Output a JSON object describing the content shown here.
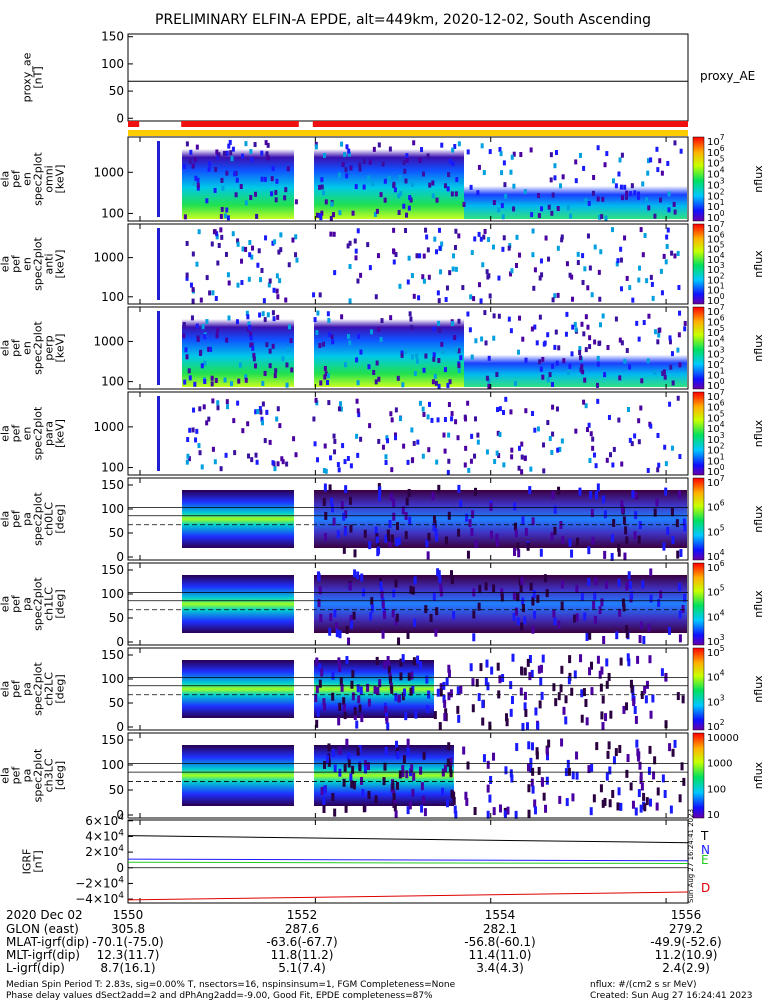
{
  "title": "PRELIMINARY ELFIN-A EPDE, alt=449km, 2020-12-02, South Ascending",
  "colors": {
    "trace_T": "#000000",
    "trace_N": "#1a1aff",
    "trace_E": "#22cc22",
    "trace_D": "#dd0000",
    "bar_red": "#ee1111",
    "bar_orange": "#ffcc00"
  },
  "chart_data": {
    "type": "heatmap",
    "time_ticks": [
      "1550",
      "1552",
      "1554",
      "1556"
    ],
    "xlim": [
      "15:49.7",
      "15:56.0"
    ],
    "proxy_ae": {
      "ylabel": [
        "proxy_ae",
        "[nT]"
      ],
      "yticks": [
        "150",
        "100",
        "50",
        "0"
      ],
      "ylim": [
        -5,
        155
      ],
      "legend": "proxy_AE",
      "value": 68
    },
    "status_bars": [
      {
        "color": "red",
        "segments": [
          [
            0.0,
            0.02
          ],
          [
            0.095,
            0.305
          ],
          [
            0.33,
            1.0
          ]
        ]
      },
      {
        "color": "orange",
        "segments": [
          [
            0.0,
            1.0
          ]
        ]
      }
    ],
    "energy_panels": [
      {
        "ylabel": [
          "ela",
          "pef",
          "en",
          "spec2plot",
          "omni",
          "[keV]"
        ],
        "yticks": [
          "1000",
          "100"
        ],
        "cbar_ticks": [
          "10^7",
          "10^6",
          "10^5",
          "10^4",
          "10^3",
          "10^2",
          "10^1",
          "10^0"
        ],
        "cbar_label": "nflux"
      },
      {
        "ylabel": [
          "ela",
          "pef",
          "en",
          "spec2plot",
          "anti",
          "[keV]"
        ],
        "yticks": [
          "1000",
          "100"
        ],
        "cbar_ticks": [
          "10^7",
          "10^6",
          "10^5",
          "10^4",
          "10^3",
          "10^2",
          "10^1",
          "10^0"
        ],
        "cbar_label": "nflux"
      },
      {
        "ylabel": [
          "ela",
          "pef",
          "en",
          "spec2plot",
          "perp",
          "[keV]"
        ],
        "yticks": [
          "1000",
          "100"
        ],
        "cbar_ticks": [
          "10^7",
          "10^6",
          "10^5",
          "10^4",
          "10^3",
          "10^2",
          "10^1",
          "10^0"
        ],
        "cbar_label": "nflux"
      },
      {
        "ylabel": [
          "ela",
          "pef",
          "en",
          "spec2plot",
          "para",
          "[keV]"
        ],
        "yticks": [
          "1000",
          "100"
        ],
        "cbar_ticks": [
          "10^7",
          "10^6",
          "10^5",
          "10^4",
          "10^3",
          "10^2",
          "10^1",
          "10^0"
        ],
        "cbar_label": "nflux"
      }
    ],
    "pitch_panels": [
      {
        "ylabel": [
          "ela",
          "pef",
          "pa",
          "spec2plot",
          "ch0LC",
          "[deg]"
        ],
        "yticks": [
          "150",
          "100",
          "50",
          "0"
        ],
        "cbar_ticks": [
          "10^7",
          "10^6",
          "10^5",
          "10^4"
        ],
        "cbar_label": "nflux"
      },
      {
        "ylabel": [
          "ela",
          "pef",
          "pa",
          "spec2plot",
          "ch1LC",
          "[deg]"
        ],
        "yticks": [
          "150",
          "100",
          "50",
          "0"
        ],
        "cbar_ticks": [
          "10^6",
          "10^5",
          "10^4",
          "10^3"
        ],
        "cbar_label": "nflux"
      },
      {
        "ylabel": [
          "ela",
          "pef",
          "pa",
          "spec2plot",
          "ch2LC",
          "[deg]"
        ],
        "yticks": [
          "150",
          "100",
          "50",
          "0"
        ],
        "cbar_ticks": [
          "10^5",
          "10^4",
          "10^3",
          "10^2"
        ],
        "cbar_label": "nflux"
      },
      {
        "ylabel": [
          "ela",
          "pef",
          "pa",
          "spec2plot",
          "ch3LC",
          "[deg]"
        ],
        "yticks": [
          "150",
          "100",
          "50",
          "0"
        ],
        "cbar_ticks": [
          "10000",
          "1000",
          "100",
          "10"
        ],
        "cbar_label": "nflux"
      }
    ],
    "igrf": {
      "ylabel": [
        "IGRF",
        "[nT]"
      ],
      "yticks": [
        "6×10^4",
        "4×10^4",
        "2×10^4",
        "0",
        "−2×10^4",
        "−4×10^4"
      ],
      "ylim": [
        -45000,
        61000
      ],
      "series": [
        {
          "name": "T",
          "start": 41000,
          "end": 32000
        },
        {
          "name": "N",
          "start": 11000,
          "end": 9000
        },
        {
          "name": "E",
          "start": 7000,
          "end": 5500
        },
        {
          "name": "D",
          "start": -41000,
          "end": -31000
        }
      ],
      "stamp": "Sun Aug 27 16:24:41 2023"
    }
  },
  "ephemeris": {
    "rows": [
      {
        "label": "2020 Dec 02",
        "values": [
          "1550",
          "1552",
          "1554",
          "1556"
        ]
      },
      {
        "label": "GLON (east)",
        "values": [
          "305.8",
          "287.6",
          "282.1",
          "279.2"
        ]
      },
      {
        "label": "MLAT-igrf(dip)",
        "values": [
          "-70.1(-75.0)",
          "-63.6(-67.7)",
          "-56.8(-60.1)",
          "-49.9(-52.6)"
        ]
      },
      {
        "label": "MLT-igrf(dip)",
        "values": [
          "12.3(11.7)",
          "11.8(11.2)",
          "11.4(11.0)",
          "11.2(10.9)"
        ]
      },
      {
        "label": "L-igrf(dip)",
        "values": [
          "8.7(16.1)",
          "5.1(7.4)",
          "3.4(4.3)",
          "2.4(2.9)"
        ]
      }
    ]
  },
  "footer": {
    "line1": "Median Spin Period T: 2.83s, sig=0.00% T, nsectors=16, nspinsinsum=1, FGM Completeness=None",
    "line2": "Phase delay values dSect2add=2 and dPhAng2add=-9.00, Good Fit, EPDE completeness=87%",
    "units": "nflux: #/(cm2 s sr MeV)",
    "created": "Created: Sun Aug 27 16:24:41 2023"
  }
}
